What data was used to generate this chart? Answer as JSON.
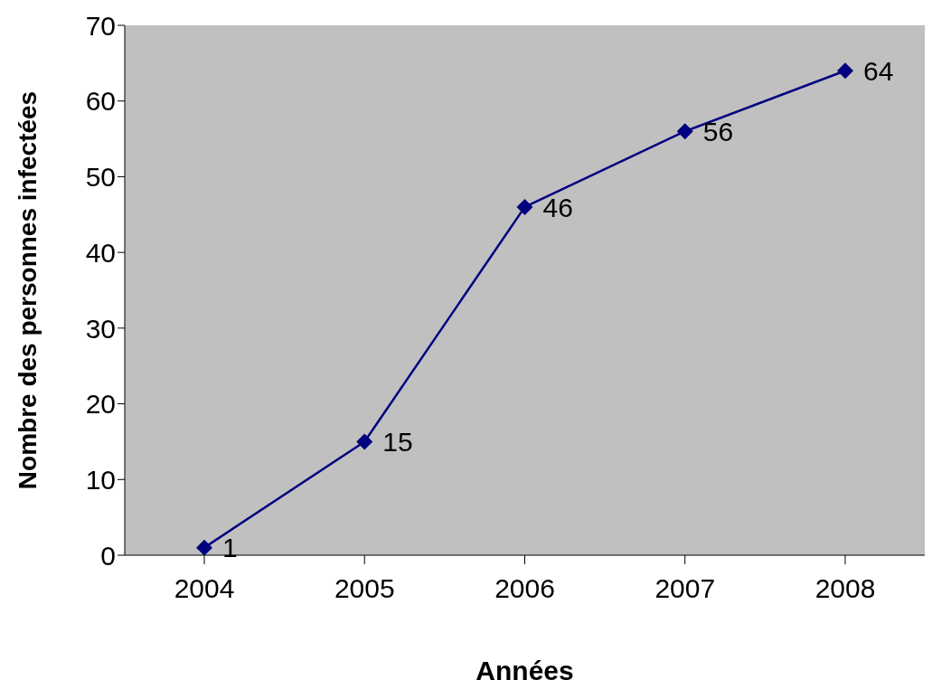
{
  "chart_data": {
    "type": "line",
    "xlabel": "Années",
    "ylabel": "Nombre des personnes infectées",
    "categories": [
      "2004",
      "2005",
      "2006",
      "2007",
      "2008"
    ],
    "series": [
      {
        "color": "#000080",
        "values": [
          1,
          15,
          46,
          56,
          64
        ]
      }
    ],
    "ylim": [
      0,
      70
    ],
    "yticks": [
      0,
      10,
      20,
      30,
      40,
      50,
      60,
      70
    ],
    "grid": false,
    "legend": false,
    "marker": "diamond",
    "line_style": "solid",
    "data_labels": true
  }
}
